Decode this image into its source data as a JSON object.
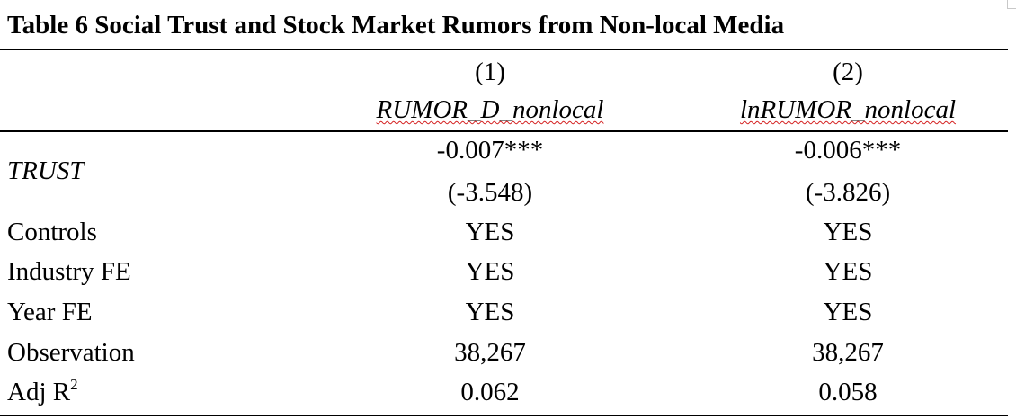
{
  "title": "Table 6 Social Trust and Stock Market Rumors from Non-local Media",
  "columns": [
    {
      "number": "(1)",
      "name": "RUMOR_D_nonlocal"
    },
    {
      "number": "(2)",
      "name": "lnRUMOR_nonlocal"
    }
  ],
  "rows": {
    "trust": {
      "label": "TRUST",
      "col1": "-0.007***",
      "col2": "-0.006***",
      "col1_t": "(-3.548)",
      "col2_t": "(-3.826)"
    },
    "controls": {
      "label": "Controls",
      "col1": "YES",
      "col2": "YES"
    },
    "industry": {
      "label": "Industry FE",
      "col1": "YES",
      "col2": "YES"
    },
    "year": {
      "label": "Year FE",
      "col1": "YES",
      "col2": "YES"
    },
    "obs": {
      "label": "Observation",
      "col1": "38,267",
      "col2": "38,267"
    },
    "adjr": {
      "label": "Adj R",
      "label_sup": "2",
      "col1": "0.062",
      "col2": "0.058"
    }
  }
}
